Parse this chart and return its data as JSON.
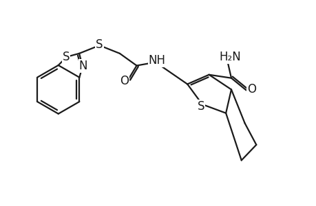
{
  "bg_color": "#ffffff",
  "line_color": "#1a1a1a",
  "line_width": 1.6,
  "font_size": 12,
  "figsize": [
    4.6,
    3.0
  ],
  "dpi": 100,
  "atoms": {
    "S_ring_btz": "S",
    "S_ext_btz": "S",
    "N_btz": "N",
    "S_thp": "S",
    "O_amide_chain": "O",
    "NH": "NH",
    "O_conh2": "O",
    "H2N": "H₂N"
  }
}
